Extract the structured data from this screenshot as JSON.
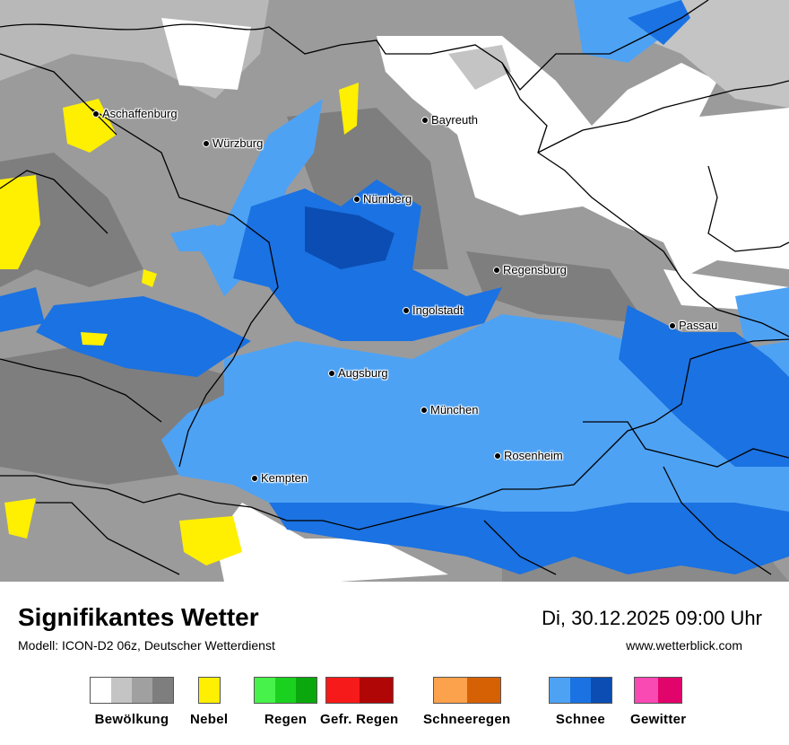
{
  "map": {
    "cities": [
      {
        "name": "Aschaffenburg"
      },
      {
        "name": "Würzburg"
      },
      {
        "name": "Bayreuth"
      },
      {
        "name": "Nürnberg"
      },
      {
        "name": "Regensburg"
      },
      {
        "name": "Ingolstadt"
      },
      {
        "name": "Passau"
      },
      {
        "name": "Augsburg"
      },
      {
        "name": "München"
      },
      {
        "name": "Rosenheim"
      },
      {
        "name": "Kempten"
      }
    ]
  },
  "footer": {
    "title": "Signifikantes Wetter",
    "model": "Modell: ICON-D2 06z, Deutscher Wetterdienst",
    "datetime": "Di, 30.12.2025 09:00 Uhr",
    "site": "www.wetterblick.com"
  },
  "legend": [
    {
      "label": "Bewölkung",
      "colors": [
        "#ffffff",
        "#c4c4c4",
        "#a0a0a0",
        "#7e7e7e"
      ]
    },
    {
      "label": "Nebel",
      "colors": [
        "#ffef00"
      ]
    },
    {
      "label": "Regen",
      "colors": [
        "#47f24a",
        "#1bd11f",
        "#0aa80d"
      ]
    },
    {
      "label": "Gefr. Regen",
      "colors": [
        "#f71a1a",
        "#b00606"
      ]
    },
    {
      "label": "Schneeregen",
      "colors": [
        "#fca24c",
        "#d66105"
      ]
    },
    {
      "label": "Schnee",
      "colors": [
        "#4ea2f4",
        "#1b72e2",
        "#0b4db3"
      ]
    },
    {
      "label": "Gewitter",
      "colors": [
        "#f94ab4",
        "#e0046b"
      ]
    }
  ]
}
